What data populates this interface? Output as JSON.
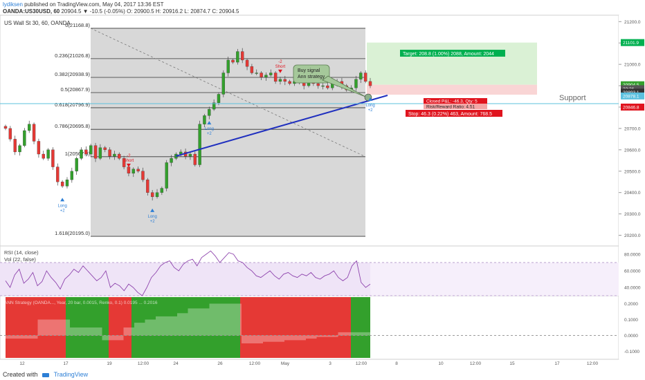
{
  "header": {
    "author": "lydiksen",
    "published": "published on TradingView.com, May 04, 2017 13:36 EST",
    "symbol": "OANDA:US30USD, 60",
    "ohlc": "20904.5 ▼ -10.5 (-0.05%) O: 20900.5 H: 20916.2 L: 20874.7 C: 20904.5"
  },
  "chart_title": "US Wall St 30, 60, OANDA",
  "colors": {
    "up": "#33a02c",
    "down": "#e53935",
    "wick": "#444444",
    "fib": "#333333",
    "trend": "#1f2fbf",
    "support": "#5bc0de",
    "rsi": "#8e44ad",
    "target": "#00b050",
    "stop": "#e0141e",
    "proj_green": "#d6efd0",
    "proj_red": "#f8d0d0",
    "fib_bg": "#d4d4d4"
  },
  "fib_levels": [
    {
      "ratio": "0",
      "label": "0(21168.8)",
      "price": 21168.8
    },
    {
      "ratio": "0.236",
      "label": "0.236(21026.8)",
      "price": 21026.8
    },
    {
      "ratio": "0.382",
      "label": "0.382(20938.9)",
      "price": 20938.9
    },
    {
      "ratio": "0.5",
      "label": "0.5(20867.9)",
      "price": 20867.9
    },
    {
      "ratio": "0.618",
      "label": "0.618(20796.9)",
      "price": 20796.9
    },
    {
      "ratio": "0.786",
      "label": "0.786(20695.8)",
      "price": 20695.8
    },
    {
      "ratio": "1",
      "label": "1(20567.8)",
      "price": 20567.8
    },
    {
      "ratio": "1.618",
      "label": "1.618(20195.0)",
      "price": 20195.0
    }
  ],
  "annotations": {
    "buy_signal": [
      "Buy signal",
      "Ann strategy"
    ],
    "support": "Support",
    "target": "Target: 208.8 (1.00%) 2088, Amount: 2044",
    "closed_pnl": "Closed P&L: -46.3, Qty: 5",
    "risk_reward": "Risk/Reward Ratio: 4.51",
    "stop": "Stop: 46.3 (0.22%) 463, Amount: 768.5"
  },
  "signals": [
    {
      "text": "Long",
      "sub": "+2",
      "dir": "up",
      "idx": 12
    },
    {
      "text": "Short",
      "sub": "-2",
      "dir": "down",
      "idx": 26
    },
    {
      "text": "Long",
      "sub": "+2",
      "dir": "up",
      "idx": 31
    },
    {
      "text": "Long",
      "sub": "+2",
      "dir": "up",
      "idx": 43
    },
    {
      "text": "Short",
      "sub": "-2",
      "dir": "down",
      "idx": 58
    },
    {
      "text": "Long",
      "sub": "+2",
      "dir": "up",
      "idx": 88
    }
  ],
  "price_axis": {
    "ticks": [
      "21200.0",
      "21100.0",
      "21000.0",
      "20900.0",
      "20800.0",
      "20700.0",
      "20600.0",
      "20500.0",
      "20400.0",
      "20300.0",
      "20200.0"
    ],
    "tick_values": [
      21200,
      21100,
      21000,
      20900,
      20800,
      20700,
      20600,
      20500,
      20400,
      20300,
      20200
    ],
    "labels": [
      {
        "text": "21101.9",
        "price": 21101.9,
        "color": "#00b050"
      },
      {
        "text": "20904.5",
        "price": 20904.5,
        "color": "#33a02c"
      },
      {
        "text": "23:36",
        "price": 20886,
        "color": "#555555"
      },
      {
        "text": "20893.1",
        "price": 20870,
        "color": "#333333"
      },
      {
        "text": "20878.1",
        "price": 20852,
        "color": "#5bc0de"
      },
      {
        "text": "20846.8",
        "price": 20800,
        "color": "#e0141e"
      }
    ]
  },
  "x_axis": {
    "labels": [
      "12",
      "17",
      "19",
      "12:00",
      "24",
      "26",
      "12:00",
      "May",
      "3",
      "12:00",
      "8",
      "10",
      "12:00",
      "15",
      "17",
      "12:00"
    ]
  },
  "rsi": {
    "title": "RSI (14, close)",
    "vol": "Vol (22, false)",
    "ticks": [
      "80.0000",
      "60.0000",
      "40.0000"
    ],
    "tick_values": [
      80,
      60,
      40
    ]
  },
  "ann": {
    "title": "ANN Strategy (OANDA..., Year, 20 bar, 0.0015, Renko, 0.1) 0.0195 ... 0.2016",
    "ticks": [
      "0.2000",
      "0.1000",
      "0.0000",
      "-0.1000"
    ],
    "tick_values": [
      0.2,
      0.1,
      0,
      -0.1
    ]
  },
  "footer": {
    "created": "Created with",
    "brand": "TradingView"
  },
  "chart_data": {
    "type": "candlestick",
    "title": "US Wall St 30, 60, OANDA",
    "ylim": [
      20150,
      21230
    ],
    "close": [
      20700,
      20650,
      20590,
      20620,
      20690,
      20720,
      20640,
      20580,
      20560,
      20600,
      20520,
      20450,
      20430,
      20460,
      20500,
      20560,
      20600,
      20580,
      20620,
      20560,
      20610,
      20600,
      20570,
      20580,
      20560,
      20520,
      20490,
      20510,
      20500,
      20460,
      20400,
      20380,
      20400,
      20420,
      20540,
      20560,
      20580,
      20590,
      20570,
      20580,
      20530,
      20720,
      20760,
      20790,
      20820,
      20860,
      20960,
      21020,
      21010,
      21060,
      21020,
      20990,
      20960,
      20960,
      20940,
      20950,
      20960,
      20920,
      20930,
      20920,
      20910,
      20920,
      20930,
      20900,
      20920,
      20910,
      20900,
      20900,
      20890,
      20910,
      20920,
      20900,
      20880,
      20890,
      20930,
      20960,
      20920,
      20900
    ],
    "rsi": [
      48,
      40,
      55,
      62,
      45,
      50,
      58,
      42,
      47,
      60,
      52,
      46,
      38,
      50,
      55,
      62,
      58,
      66,
      60,
      54,
      48,
      52,
      60,
      40,
      45,
      42,
      36,
      44,
      40,
      34,
      30,
      40,
      52,
      58,
      66,
      70,
      72,
      64,
      60,
      68,
      72,
      74,
      66,
      76,
      80,
      84,
      78,
      70,
      76,
      82,
      80,
      72,
      70,
      64,
      60,
      54,
      52,
      56,
      60,
      54,
      50,
      56,
      58,
      54,
      52,
      56,
      54,
      58,
      52,
      50,
      54,
      56,
      60,
      52,
      48,
      52,
      66,
      72,
      46,
      40,
      44
    ],
    "ann": [
      -0.02,
      -0.02,
      -0.02,
      0.1,
      0.1,
      0.1,
      0.05,
      0.05,
      0.05,
      -0.03,
      -0.03,
      0.05,
      0.08,
      0.1,
      0.12,
      0.12,
      0.14,
      0.17,
      0.17,
      0.2,
      0.2,
      0.2,
      -0.05,
      -0.05,
      -0.04,
      -0.04,
      -0.03,
      -0.03,
      -0.02,
      -0.01,
      -0.01,
      0.02,
      0.02,
      0.02
    ]
  }
}
